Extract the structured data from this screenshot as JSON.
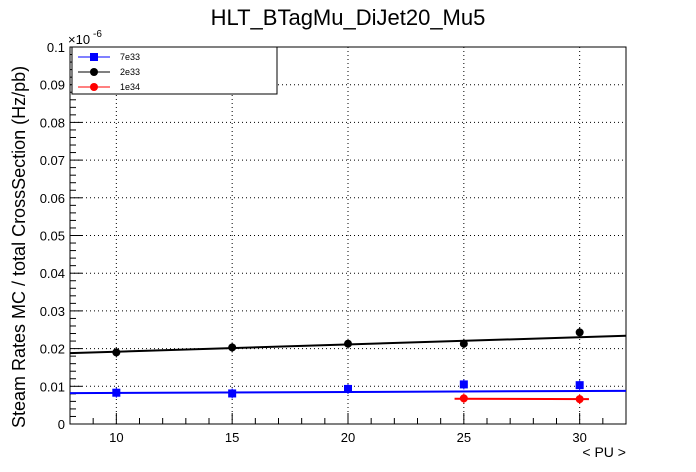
{
  "chart_data": {
    "type": "scatter",
    "title": "HLT_BTagMu_DiJet20_Mu5",
    "xlabel": "< PU >",
    "ylabel": "Steam Rates MC / total CrossSection (Hz/pb)",
    "y_multiplier": "×10",
    "y_exponent": "-6",
    "xlim": [
      8,
      32
    ],
    "ylim": [
      0,
      0.1
    ],
    "x_ticks": [
      10,
      15,
      20,
      25,
      30
    ],
    "x_tick_labels": [
      "10",
      "15",
      "20",
      "25",
      "30"
    ],
    "y_ticks": [
      0,
      0.01,
      0.02,
      0.03,
      0.04,
      0.05,
      0.06,
      0.07,
      0.08,
      0.09,
      0.1
    ],
    "y_tick_labels": [
      "0",
      "0.01",
      "0.02",
      "0.03",
      "0.04",
      "0.05",
      "0.06",
      "0.07",
      "0.08",
      "0.09",
      "0.1"
    ],
    "grid": true,
    "legend_position": "top-left",
    "series": [
      {
        "name": "7e33",
        "color": "#0000ff",
        "marker": "square",
        "x": [
          10,
          15,
          20,
          25,
          30
        ],
        "y": [
          0.0083,
          0.0081,
          0.0093,
          0.0105,
          0.0103
        ],
        "fit": {
          "x": [
            8,
            32
          ],
          "y": [
            0.0082,
            0.0088
          ]
        }
      },
      {
        "name": "2e33",
        "color": "#000000",
        "marker": "circle",
        "x": [
          10,
          15,
          20,
          25,
          30
        ],
        "y": [
          0.019,
          0.0203,
          0.0213,
          0.0213,
          0.0243
        ],
        "fit": {
          "x": [
            8,
            32
          ],
          "y": [
            0.0188,
            0.0234
          ]
        }
      },
      {
        "name": "1e34",
        "color": "#ff0000",
        "marker": "circle",
        "x": [
          25,
          30
        ],
        "y": [
          0.0068,
          0.0066
        ],
        "fit": {
          "x": [
            24.6,
            30.4
          ],
          "y": [
            0.0067,
            0.0066
          ]
        }
      }
    ]
  }
}
